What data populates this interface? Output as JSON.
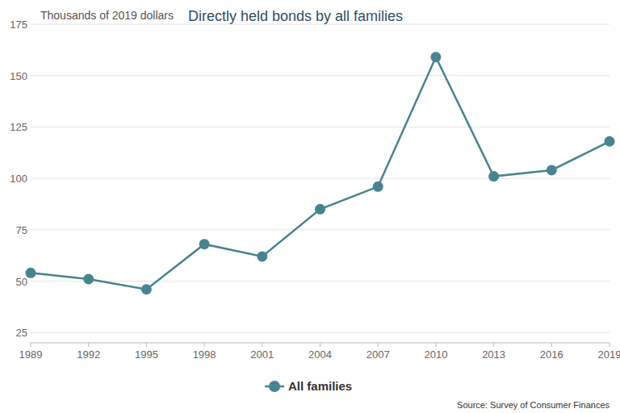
{
  "chart_data": {
    "type": "line",
    "title": "Directly held bonds by all families",
    "y_label": "Thousands of 2019 dollars",
    "source": "Source: Survey of Consumer Finances",
    "x": [
      1989,
      1992,
      1995,
      1998,
      2001,
      2004,
      2007,
      2010,
      2013,
      2016,
      2019
    ],
    "series": [
      {
        "name": "All families",
        "color": "#47848f",
        "marker": "circle",
        "line_style": "solid",
        "values": [
          54,
          51,
          46,
          68,
          62,
          85,
          96,
          159,
          101,
          104,
          118
        ]
      }
    ],
    "xlim": [
      1989,
      2019
    ],
    "xticks": [
      1989,
      1992,
      1995,
      1998,
      2001,
      2004,
      2007,
      2010,
      2013,
      2016,
      2019
    ],
    "ylim": [
      20,
      175
    ],
    "yticks": [
      25,
      50,
      75,
      100,
      125,
      150,
      175
    ],
    "grid": true,
    "legend": "bottom"
  }
}
